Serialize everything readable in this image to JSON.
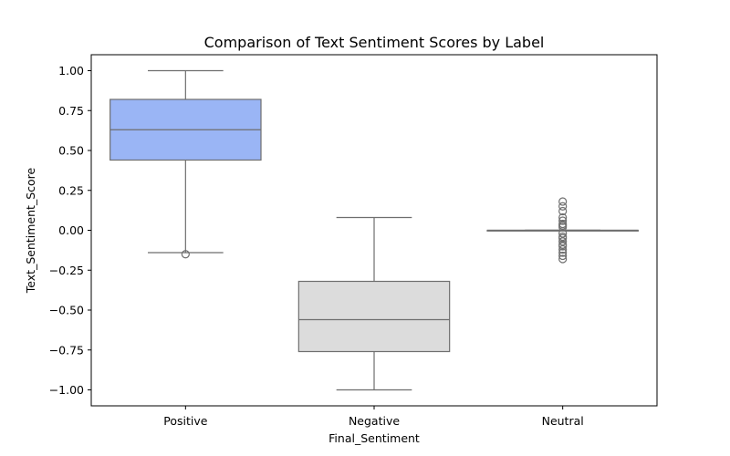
{
  "chart_data": {
    "type": "box",
    "title": "Comparison of Text Sentiment Scores by Label",
    "xlabel": "Final_Sentiment",
    "ylabel": "Text_Sentiment_Score",
    "ylim": [
      -1.1,
      1.1
    ],
    "yticks": [
      -1.0,
      -0.75,
      -0.5,
      -0.25,
      0.0,
      0.25,
      0.5,
      0.75,
      1.0
    ],
    "ytick_labels": [
      "−1.00",
      "−0.75",
      "−0.50",
      "−0.25",
      "0.00",
      "0.25",
      "0.50",
      "0.75",
      "1.00"
    ],
    "grid": false,
    "categories": [
      "Positive",
      "Negative",
      "Neutral"
    ],
    "boxes": [
      {
        "category": "Positive",
        "color": "#9ab5f5",
        "whisker_low": -0.14,
        "q1": 0.44,
        "median": 0.63,
        "q3": 0.82,
        "whisker_high": 1.0,
        "outliers": [
          -0.15
        ]
      },
      {
        "category": "Negative",
        "color": "#dcdcdc",
        "whisker_low": -1.0,
        "q1": -0.76,
        "median": -0.56,
        "q3": -0.32,
        "whisker_high": 0.08,
        "outliers": []
      },
      {
        "category": "Neutral",
        "color": "#f2cfc0",
        "whisker_low": 0.0,
        "q1": 0.0,
        "median": 0.0,
        "q3": 0.0,
        "whisker_high": 0.0,
        "outliers": [
          0.18,
          0.15,
          0.12,
          0.08,
          0.06,
          0.04,
          0.03,
          0.02,
          -0.02,
          -0.04,
          -0.05,
          -0.07,
          -0.09,
          -0.1,
          -0.12,
          -0.14,
          -0.16,
          -0.18
        ]
      }
    ]
  }
}
